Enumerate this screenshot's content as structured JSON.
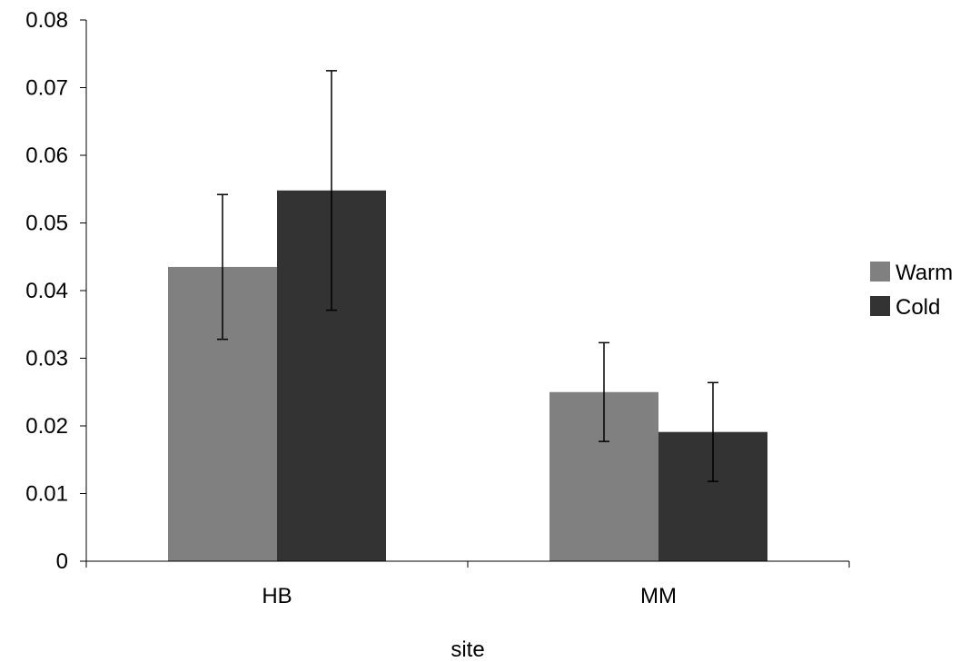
{
  "chart_data": {
    "type": "bar",
    "xlabel": "site",
    "ylabel": "",
    "categories": [
      "HB",
      "MM"
    ],
    "series": [
      {
        "name": "Warm",
        "color": "#808080",
        "values": [
          0.0435,
          0.025
        ],
        "errors": [
          0.0107,
          0.0073
        ]
      },
      {
        "name": "Cold",
        "color": "#333333",
        "values": [
          0.0548,
          0.0191
        ],
        "errors": [
          0.0177,
          0.0073
        ]
      }
    ],
    "ylim": [
      0,
      0.08
    ],
    "yticks": [
      "0",
      "0.01",
      "0.02",
      "0.03",
      "0.04",
      "0.05",
      "0.06",
      "0.07",
      "0.08"
    ],
    "grid": false,
    "legend": "right"
  }
}
